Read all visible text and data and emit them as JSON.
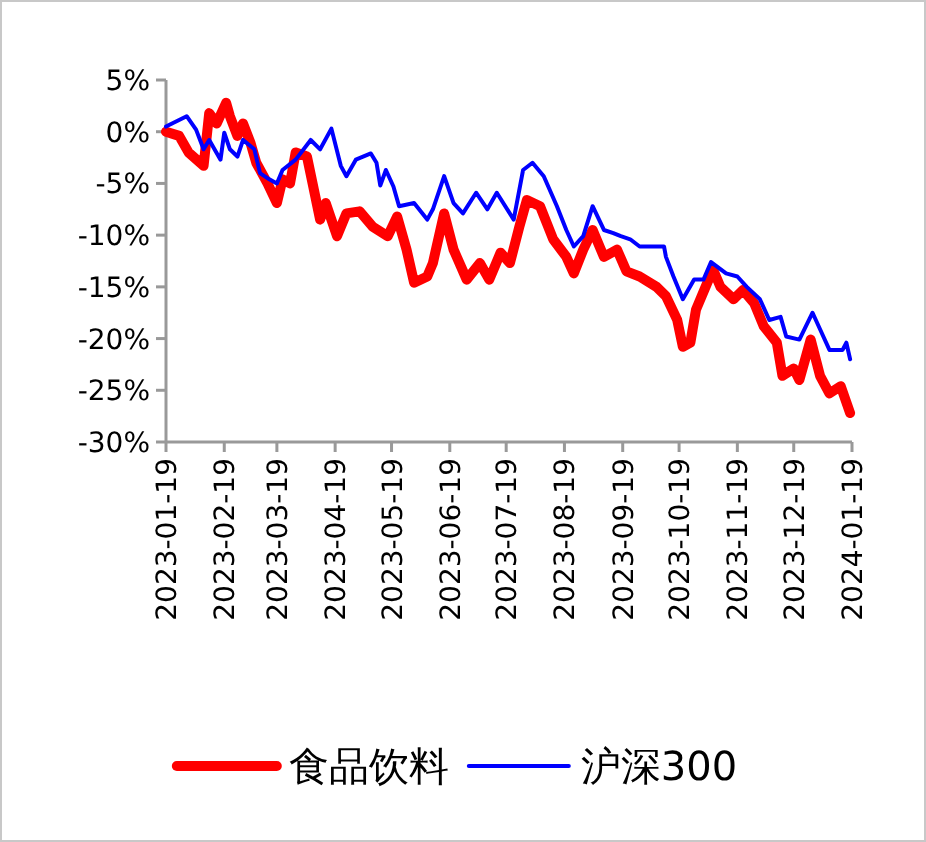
{
  "chart_data": {
    "type": "line",
    "xlim": [
      "2023-01-19",
      "2024-01-19"
    ],
    "xticks": [
      "2023-01-19",
      "2023-02-19",
      "2023-03-19",
      "2023-04-19",
      "2023-05-19",
      "2023-06-19",
      "2023-07-19",
      "2023-08-19",
      "2023-09-19",
      "2023-10-19",
      "2023-11-19",
      "2023-12-19",
      "2024-01-19"
    ],
    "ylim": [
      -30,
      5
    ],
    "yticks": [
      {
        "value": 5,
        "label": "5%"
      },
      {
        "value": 0,
        "label": "0%"
      },
      {
        "value": -5,
        "label": "-5%"
      },
      {
        "value": -10,
        "label": "-10%"
      },
      {
        "value": -15,
        "label": "-15%"
      },
      {
        "value": -20,
        "label": "-20%"
      },
      {
        "value": -25,
        "label": "-25%"
      },
      {
        "value": -30,
        "label": "-30%"
      }
    ],
    "grid": false,
    "legend": "bottom",
    "series": [
      {
        "name": "食品饮料",
        "color": "#ff0000",
        "x": [
          "2023-01-19",
          "2023-01-26",
          "2023-01-31",
          "2023-02-08",
          "2023-02-11",
          "2023-02-15",
          "2023-02-20",
          "2023-02-22",
          "2023-02-26",
          "2023-03-01",
          "2023-03-05",
          "2023-03-08",
          "2023-03-14",
          "2023-03-19",
          "2023-03-22",
          "2023-03-26",
          "2023-03-29",
          "2023-04-04",
          "2023-04-07",
          "2023-04-11",
          "2023-04-14",
          "2023-04-20",
          "2023-04-25",
          "2023-05-02",
          "2023-05-09",
          "2023-05-17",
          "2023-05-22",
          "2023-05-27",
          "2023-05-31",
          "2023-06-07",
          "2023-06-10",
          "2023-06-16",
          "2023-06-21",
          "2023-06-28",
          "2023-07-05",
          "2023-07-10",
          "2023-07-16",
          "2023-07-21",
          "2023-07-26",
          "2023-07-30",
          "2023-08-06",
          "2023-08-13",
          "2023-08-20",
          "2023-08-24",
          "2023-08-29",
          "2023-09-03",
          "2023-09-09",
          "2023-09-16",
          "2023-09-21",
          "2023-09-28",
          "2023-10-07",
          "2023-10-12",
          "2023-10-18",
          "2023-10-21",
          "2023-10-25",
          "2023-10-28",
          "2023-11-03",
          "2023-11-06",
          "2023-11-10",
          "2023-11-17",
          "2023-11-22",
          "2023-11-28",
          "2023-12-03",
          "2023-12-10",
          "2023-12-13",
          "2023-12-19",
          "2023-12-22",
          "2023-12-28",
          "2024-01-02",
          "2024-01-07",
          "2024-01-13",
          "2024-01-18"
        ],
        "values": [
          0,
          -0.4,
          -2,
          -3.3,
          1.8,
          0.8,
          2.8,
          1.5,
          -0.4,
          0.8,
          -1.1,
          -3,
          -5,
          -6.9,
          -4.6,
          -5,
          -2,
          -2.4,
          -5,
          -8.5,
          -6.9,
          -10.1,
          -7.9,
          -7.7,
          -9.2,
          -10.1,
          -8.2,
          -11.4,
          -14.6,
          -14,
          -12.7,
          -7.9,
          -11.4,
          -14.3,
          -12.7,
          -14.3,
          -11.7,
          -12.7,
          -9.2,
          -6.6,
          -7.2,
          -10.4,
          -12.1,
          -13.7,
          -11.4,
          -9.5,
          -12.1,
          -11.4,
          -13.5,
          -14,
          -15,
          -15.9,
          -18.2,
          -20.8,
          -20.4,
          -17.2,
          -14.6,
          -13.3,
          -15,
          -16.2,
          -15.3,
          -16.6,
          -18.8,
          -20.4,
          -23.6,
          -22.9,
          -24,
          -20.1,
          -23.6,
          -25.3,
          -24.6,
          -27.2
        ]
      },
      {
        "name": "沪深300",
        "color": "#0000ff",
        "x": [
          "2023-01-19",
          "2023-01-30",
          "2023-02-04",
          "2023-02-08",
          "2023-02-11",
          "2023-02-17",
          "2023-02-19",
          "2023-02-22",
          "2023-02-26",
          "2023-03-01",
          "2023-03-07",
          "2023-03-10",
          "2023-03-15",
          "2023-03-19",
          "2023-03-22",
          "2023-03-29",
          "2023-04-06",
          "2023-04-11",
          "2023-04-17",
          "2023-04-22",
          "2023-04-25",
          "2023-04-30",
          "2023-05-08",
          "2023-05-11",
          "2023-05-13",
          "2023-05-16",
          "2023-05-20",
          "2023-05-23",
          "2023-05-31",
          "2023-06-07",
          "2023-06-10",
          "2023-06-16",
          "2023-06-21",
          "2023-06-26",
          "2023-07-03",
          "2023-07-09",
          "2023-07-14",
          "2023-07-23",
          "2023-07-28",
          "2023-08-02",
          "2023-08-08",
          "2023-08-15",
          "2023-08-20",
          "2023-08-24",
          "2023-08-29",
          "2023-09-03",
          "2023-09-09",
          "2023-09-14",
          "2023-09-18",
          "2023-09-23",
          "2023-09-28",
          "2023-10-11",
          "2023-10-12",
          "2023-10-16",
          "2023-10-21",
          "2023-10-27",
          "2023-11-01",
          "2023-11-05",
          "2023-11-13",
          "2023-11-19",
          "2023-11-24",
          "2023-12-01",
          "2023-12-06",
          "2023-12-12",
          "2023-12-15",
          "2023-12-22",
          "2023-12-29",
          "2024-01-02",
          "2024-01-07",
          "2024-01-14",
          "2024-01-16",
          "2024-01-18"
        ],
        "values": [
          0.5,
          1.5,
          0.2,
          -1.7,
          -0.8,
          -2.7,
          -0.1,
          -1.7,
          -2.4,
          -0.8,
          -1.7,
          -4,
          -4.6,
          -5,
          -3.7,
          -2.7,
          -0.8,
          -1.7,
          0.3,
          -3.3,
          -4.3,
          -2.7,
          -2.1,
          -3,
          -5.2,
          -3.7,
          -5.3,
          -7.2,
          -6.9,
          -8.5,
          -7.5,
          -4.3,
          -6.9,
          -7.9,
          -5.9,
          -7.5,
          -5.9,
          -8.5,
          -3.7,
          -3,
          -4.3,
          -7.2,
          -9.5,
          -11.1,
          -10.1,
          -7.2,
          -9.5,
          -9.8,
          -10.1,
          -10.4,
          -11.1,
          -11.1,
          -12.1,
          -14,
          -16.2,
          -14.3,
          -14.3,
          -12.6,
          -13.7,
          -14,
          -15,
          -16.2,
          -18.2,
          -17.9,
          -19.8,
          -20.1,
          -17.5,
          -19.1,
          -21.1,
          -21.1,
          -20.4,
          -22
        ]
      }
    ]
  }
}
